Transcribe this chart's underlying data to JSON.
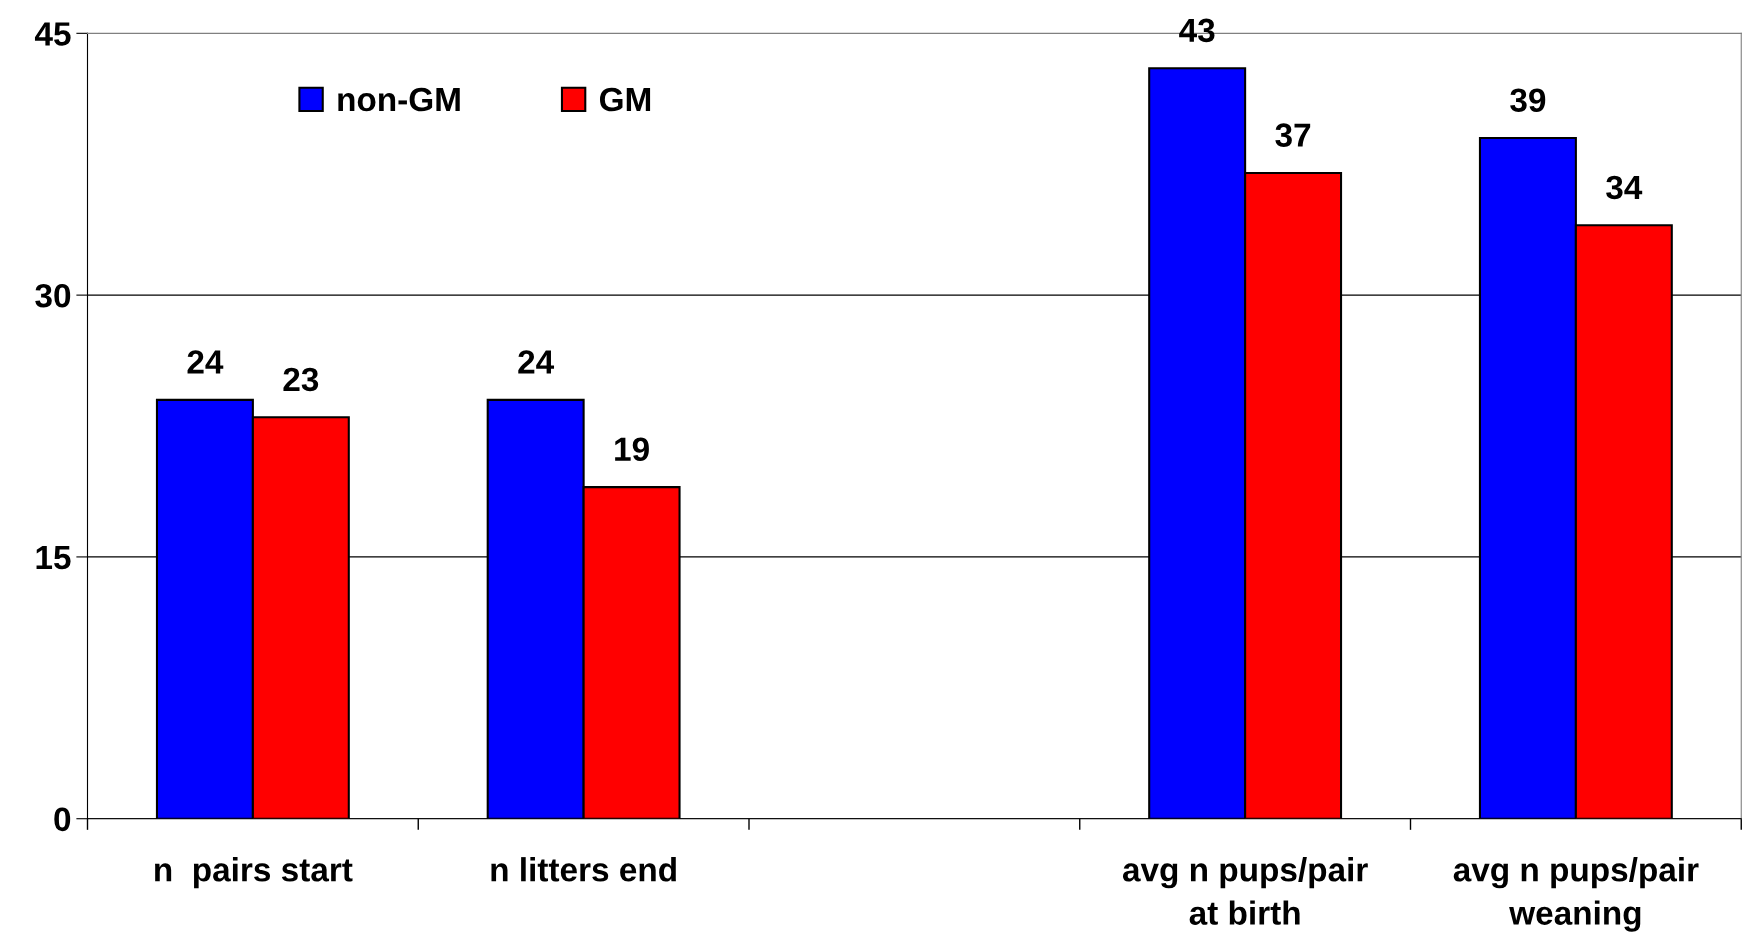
{
  "chart_data": {
    "type": "bar",
    "categories": [
      "n  pairs start",
      "n litters end",
      null,
      "avg n pups/pair\nat birth",
      "avg n pups/pair\nweaning"
    ],
    "series": [
      {
        "name": "non-GM",
        "color": "#0000ff",
        "values": [
          24,
          24,
          null,
          43,
          39
        ]
      },
      {
        "name": "GM",
        "color": "#ff0000",
        "values": [
          23,
          19,
          null,
          37,
          34
        ]
      }
    ],
    "ylim": [
      0,
      45
    ],
    "yticks": [
      0,
      15,
      30,
      45
    ],
    "grid": "y",
    "legend": "top left",
    "data_labels": true
  }
}
